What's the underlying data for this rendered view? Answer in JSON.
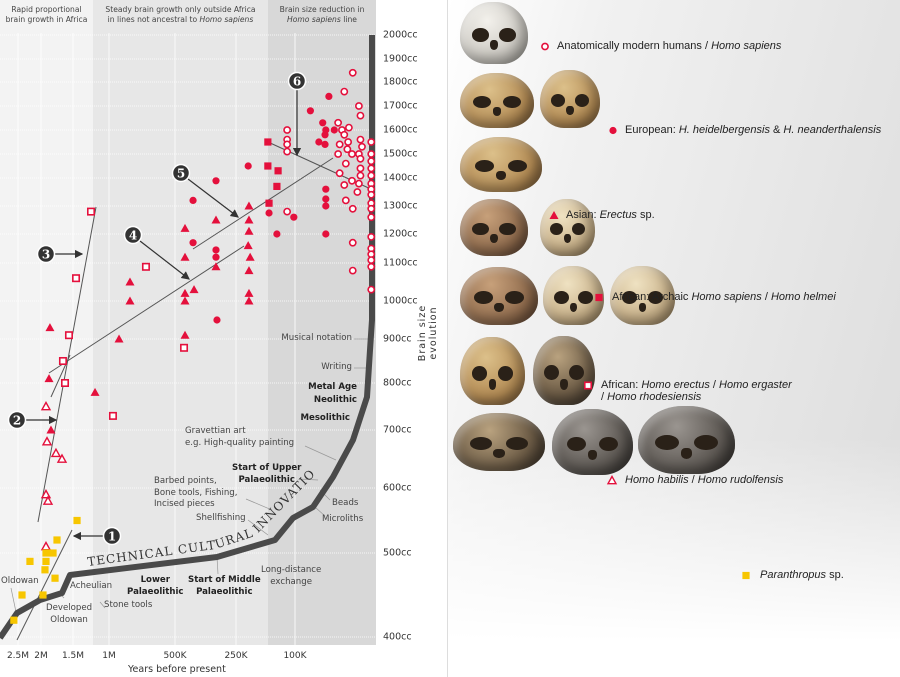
{
  "headers": {
    "band1": [
      "Rapid proportional",
      "brain growth in Africa"
    ],
    "band2_line1": "Steady brain growth only outside Africa",
    "band2_line2_pre": "in lines not ancestral to ",
    "band2_line2_italic": "Homo sapiens",
    "band3_line1": "Brain size reduction in",
    "band3_line2_italic": "Homo sapiens",
    "band3_line2_post": " line"
  },
  "colors": {
    "red": "#e4103c",
    "yellow": "#f7c600",
    "curve": "#4a4a4a",
    "band1": "#f3f3f3",
    "band2": "#e7e7e7",
    "band3": "#d8d8d8"
  },
  "chart_data": {
    "type": "scatter",
    "xlabel": "Years before present",
    "ylabel": "Brain size evolution",
    "xscale": "nonlinear (compressed toward the past)",
    "yscale": "log",
    "xlim": [
      2600000,
      0
    ],
    "ylim": [
      400,
      2000
    ],
    "x_ticks": [
      {
        "v": 2500000,
        "label": "2.5M"
      },
      {
        "v": 2000000,
        "label": "2M"
      },
      {
        "v": 1500000,
        "label": "1.5M"
      },
      {
        "v": 1000000,
        "label": "1M"
      },
      {
        "v": 500000,
        "label": "500K"
      },
      {
        "v": 250000,
        "label": "250K"
      },
      {
        "v": 100000,
        "label": "100K"
      }
    ],
    "y_ticks": [
      {
        "v": 2000,
        "label": "2000cc"
      },
      {
        "v": 1900,
        "label": "1900cc"
      },
      {
        "v": 1800,
        "label": "1800cc"
      },
      {
        "v": 1700,
        "label": "1700cc"
      },
      {
        "v": 1600,
        "label": "1600cc"
      },
      {
        "v": 1500,
        "label": "1500cc"
      },
      {
        "v": 1400,
        "label": "1400cc"
      },
      {
        "v": 1300,
        "label": "1300cc"
      },
      {
        "v": 1200,
        "label": "1200cc"
      },
      {
        "v": 1100,
        "label": "1100cc"
      },
      {
        "v": 1000,
        "label": "1000cc"
      },
      {
        "v": 900,
        "label": "900cc"
      },
      {
        "v": 800,
        "label": "800cc"
      },
      {
        "v": 700,
        "label": "700cc"
      },
      {
        "v": 600,
        "label": "600cc"
      },
      {
        "v": 500,
        "label": "500cc"
      },
      {
        "v": 400,
        "label": "400cc"
      }
    ],
    "grid": true,
    "series": [
      {
        "name": "Anatomically modern humans / Homo sapiens",
        "marker": "circle-open",
        "color": "#e4103c",
        "points": [
          [
            25000,
            1840
          ],
          [
            36000,
            1760
          ],
          [
            17000,
            1700
          ],
          [
            15000,
            1660
          ],
          [
            44000,
            1630
          ],
          [
            30000,
            1610
          ],
          [
            39000,
            1600
          ],
          [
            36000,
            1580
          ],
          [
            31000,
            1550
          ],
          [
            15000,
            1560
          ],
          [
            42000,
            1540
          ],
          [
            32000,
            1520
          ],
          [
            13000,
            1530
          ],
          [
            44000,
            1500
          ],
          [
            26000,
            1500
          ],
          [
            17000,
            1500
          ],
          [
            15000,
            1480
          ],
          [
            34000,
            1460
          ],
          [
            15000,
            1440
          ],
          [
            42000,
            1420
          ],
          [
            15000,
            1410
          ],
          [
            26000,
            1390
          ],
          [
            36000,
            1375
          ],
          [
            17000,
            1380
          ],
          [
            19000,
            1350
          ],
          [
            34000,
            1320
          ],
          [
            25000,
            1290
          ],
          [
            25000,
            1170
          ],
          [
            25000,
            1080
          ],
          [
            120000,
            1280
          ],
          [
            120000,
            1600
          ],
          [
            120000,
            1560
          ],
          [
            120000,
            1540
          ],
          [
            120000,
            1510
          ],
          [
            1000,
            1550
          ],
          [
            1000,
            1500
          ],
          [
            1000,
            1470
          ],
          [
            1000,
            1440
          ],
          [
            1000,
            1410
          ],
          [
            1000,
            1380
          ],
          [
            1000,
            1360
          ],
          [
            1000,
            1340
          ],
          [
            1000,
            1310
          ],
          [
            1000,
            1290
          ],
          [
            1000,
            1260
          ],
          [
            1000,
            1190
          ],
          [
            1000,
            1150
          ],
          [
            1000,
            1130
          ],
          [
            1000,
            1110
          ],
          [
            1000,
            1090
          ],
          [
            1000,
            1030
          ]
        ]
      },
      {
        "name": "European: H. heidelbergensis & H. neanderthalensis",
        "marker": "circle",
        "color": "#e4103c",
        "points": [
          [
            56000,
            1740
          ],
          [
            80000,
            1680
          ],
          [
            64000,
            1630
          ],
          [
            49000,
            1600
          ],
          [
            60000,
            1600
          ],
          [
            61000,
            1580
          ],
          [
            69000,
            1550
          ],
          [
            61000,
            1540
          ],
          [
            219000,
            1450
          ],
          [
            332000,
            1390
          ],
          [
            426000,
            1320
          ],
          [
            60000,
            1360
          ],
          [
            60000,
            1325
          ],
          [
            60000,
            1300
          ],
          [
            166000,
            1275
          ],
          [
            103000,
            1260
          ],
          [
            146000,
            1200
          ],
          [
            60000,
            1200
          ],
          [
            426000,
            1170
          ],
          [
            332000,
            1145
          ],
          [
            332000,
            1120
          ],
          [
            328000,
            950
          ]
        ]
      },
      {
        "name": "Asian: Erectus sp.",
        "marker": "triangle",
        "color": "#e4103c",
        "points": [
          [
            217000,
            1300
          ],
          [
            332000,
            1250
          ],
          [
            459000,
            1220
          ],
          [
            217000,
            1250
          ],
          [
            217000,
            1210
          ],
          [
            219000,
            1160
          ],
          [
            459000,
            1120
          ],
          [
            214000,
            1120
          ],
          [
            332000,
            1090
          ],
          [
            841000,
            1050
          ],
          [
            217000,
            1080
          ],
          [
            841000,
            1000
          ],
          [
            459000,
            1020
          ],
          [
            422000,
            1030
          ],
          [
            459000,
            1000
          ],
          [
            217000,
            1020
          ],
          [
            217000,
            1000
          ],
          [
            1860000,
            930
          ],
          [
            459000,
            910
          ],
          [
            924000,
            900
          ],
          [
            1875000,
            810
          ],
          [
            1194000,
            780
          ],
          [
            1844000,
            700
          ]
        ]
      },
      {
        "name": "African: Archaic Homo sapiens / Homo helmei",
        "marker": "square",
        "color": "#e4103c",
        "points": [
          [
            169000,
            1550
          ],
          [
            169000,
            1450
          ],
          [
            143000,
            1430
          ],
          [
            146000,
            1370
          ],
          [
            166000,
            1310
          ]
        ]
      },
      {
        "name": "African: Homo erectus / Homo ergaster / Homo rhodesiensis",
        "marker": "square-open",
        "color": "#e4103c",
        "points": [
          [
            1250000,
            1280
          ],
          [
            1458000,
            1060
          ],
          [
            720000,
            1090
          ],
          [
            1563000,
            910
          ],
          [
            463000,
            880
          ],
          [
            1657000,
            850
          ],
          [
            1625000,
            800
          ],
          [
            970000,
            730
          ]
        ]
      },
      {
        "name": "Homo habilis / Homo rudolfensis",
        "marker": "triangle-open",
        "color": "#e4103c",
        "points": [
          [
            1922000,
            750
          ],
          [
            1906000,
            680
          ],
          [
            1766000,
            660
          ],
          [
            1672000,
            650
          ],
          [
            1922000,
            590
          ],
          [
            1891000,
            580
          ],
          [
            1922000,
            510
          ]
        ]
      },
      {
        "name": "Paranthropus sp.",
        "marker": "square",
        "color": "#f7c600",
        "points": [
          [
            1444000,
            550
          ],
          [
            1750000,
            520
          ],
          [
            1922000,
            500
          ],
          [
            1812000,
            500
          ],
          [
            2240000,
            490
          ],
          [
            1922000,
            490
          ],
          [
            1938000,
            480
          ],
          [
            1781000,
            470
          ],
          [
            2413000,
            450
          ],
          [
            1969000,
            450
          ],
          [
            2590000,
            420
          ]
        ]
      }
    ],
    "callouts": [
      "1",
      "2",
      "3",
      "4",
      "5",
      "6"
    ],
    "curve_label": "TECHNICAL CULTURAL INNOVATION",
    "annotations": {
      "musical_notation": "Musical notation",
      "writing": "Writing",
      "metal_age": "Metal Age",
      "neolithic": "Neolithic",
      "mesolithic": "Mesolithic",
      "gravettian": [
        "Gravettian art",
        "e.g. High-quality painting"
      ],
      "upper_palaeolithic": [
        "Start of Upper",
        "Palaeolithic"
      ],
      "barbed": [
        "Barbed points,",
        "Bone tools, Fishing,",
        "Incised pieces"
      ],
      "shellfishing": "Shellfishing",
      "beads": "Beads",
      "microliths": "Microliths",
      "long_distance": [
        "Long-distance",
        "exchange"
      ],
      "middle_palaeolithic": [
        "Start of Middle",
        "Palaeolithic"
      ],
      "lower_palaeolithic": [
        "Lower",
        "Palaeolithic"
      ],
      "acheulian": "Acheulian",
      "oldowan": "Oldowan",
      "developed_oldowan": [
        "Developed",
        "Oldowan"
      ],
      "stone_tools": "Stone tools"
    }
  },
  "legend": [
    {
      "marker": "circle-open",
      "text": [
        {
          "t": "Anatomically modern humans / "
        },
        {
          "t": "Homo sapiens",
          "i": true
        }
      ]
    },
    {
      "marker": "circle",
      "text": [
        {
          "t": "European: "
        },
        {
          "t": "H. heidelbergensis",
          "i": true
        },
        {
          "t": " & "
        },
        {
          "t": "H. neanderthalensis",
          "i": true
        }
      ]
    },
    {
      "marker": "triangle",
      "text": [
        {
          "t": "Asian: "
        },
        {
          "t": "Erectus",
          "i": true
        },
        {
          "t": " sp."
        }
      ]
    },
    {
      "marker": "square",
      "text": [
        {
          "t": "African: Archaic "
        },
        {
          "t": "Homo sapiens",
          "i": true
        },
        {
          "t": " / "
        },
        {
          "t": "Homo helmei",
          "i": true
        }
      ]
    },
    {
      "marker": "square-open",
      "text": [
        {
          "t": "African: "
        },
        {
          "t": "Homo erectus",
          "i": true
        },
        {
          "t": " / "
        },
        {
          "t": "Homo ergaster",
          "i": true
        }
      ],
      "text2": [
        {
          "t": "/ "
        },
        {
          "t": "Homo rhodesiensis",
          "i": true
        }
      ]
    },
    {
      "marker": "triangle-open",
      "text": [
        {
          "t": "Homo habilis",
          "i": true
        },
        {
          "t": " / "
        },
        {
          "t": "Homo rudolfensis",
          "i": true
        }
      ]
    },
    {
      "marker": "square-yellow",
      "text": [
        {
          "t": "Paranthropus",
          "i": true
        },
        {
          "t": " sp."
        }
      ]
    }
  ]
}
